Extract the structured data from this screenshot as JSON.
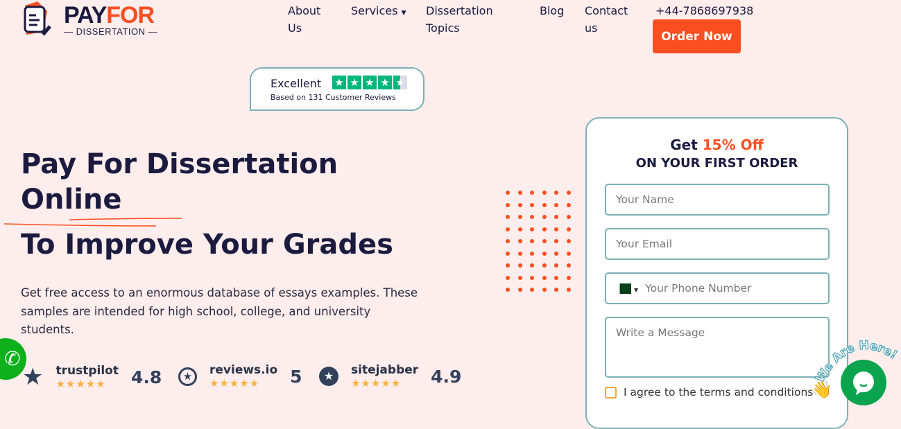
{
  "logo": {
    "brand_part1": "PAY",
    "brand_part2": "FOR",
    "sub": "DISSERTATION"
  },
  "nav": {
    "about": "About Us",
    "services": "Services",
    "topics": "Dissertation Topics",
    "blog": "Blog",
    "contact": "Contact us",
    "phone": "+44-7868697938",
    "order": "Order Now"
  },
  "trustpilot_badge": {
    "rating_word": "Excellent",
    "subtitle": "Based on 131 Customer Reviews",
    "stars": 4.5
  },
  "hero": {
    "line1": "Pay For Dissertation",
    "line2": "Online",
    "line3": "To Improve Your Grades",
    "description": "Get free access to an enormous database of essays examples. These samples are intended for high school, college, and university students."
  },
  "reviews": [
    {
      "name": "trustpilot",
      "score": "4.8"
    },
    {
      "name": "reviews.io",
      "score": "5"
    },
    {
      "name": "sitejabber",
      "score": "4.9"
    }
  ],
  "form": {
    "title_prefix": "Get ",
    "title_highlight": "15% Off",
    "subtitle": "ON YOUR FIRST ORDER",
    "name_placeholder": "Your Name",
    "email_placeholder": "Your Email",
    "phone_placeholder": "Your Phone Number",
    "message_placeholder": "Write a Message",
    "agree": "I agree to the terms and conditions"
  },
  "chat": {
    "label": "We Are Here!"
  },
  "colors": {
    "accent": "#fc4f21",
    "navy": "#1b1a3f",
    "teal": "#7ab0b5",
    "whatsapp": "#0cb11c"
  }
}
